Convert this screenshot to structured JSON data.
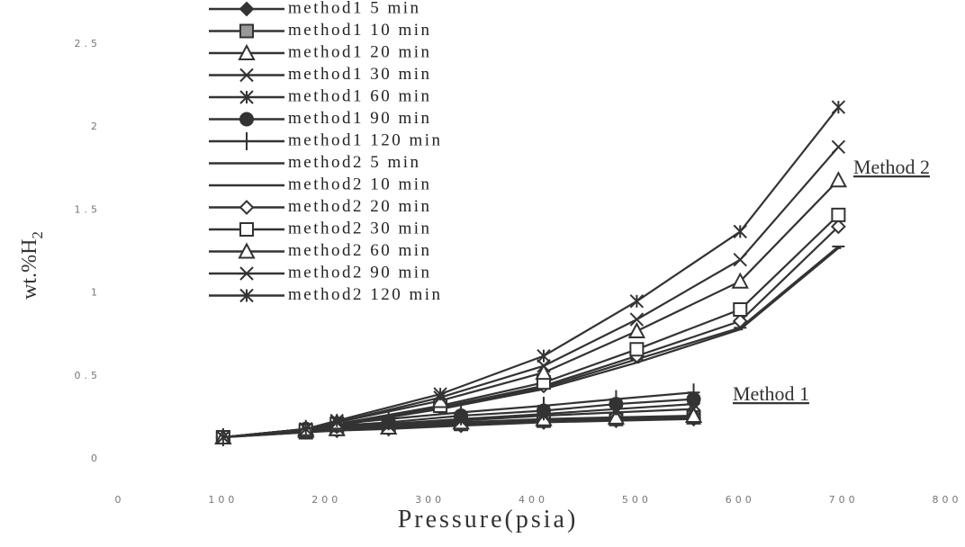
{
  "chart_data": {
    "type": "line",
    "x_label": "Pressure(psia)",
    "y_label": "wt.%H",
    "y_label_sub": "2",
    "xlim": [
      0,
      800
    ],
    "xticks": [
      0,
      100,
      200,
      300,
      400,
      500,
      600,
      700,
      800
    ],
    "ylim": [
      0,
      2.5
    ],
    "yticks": [
      0,
      0.5,
      1,
      1.5,
      2,
      2.5
    ],
    "legend": "top-left",
    "annotations": [
      "Method 2",
      "Method 1"
    ],
    "series": [
      {
        "name": "method1 5 min",
        "marker": "diamond",
        "color": "#333",
        "x": [
          100,
          180,
          210,
          260,
          330,
          410,
          480,
          555
        ],
        "values": [
          0.13,
          0.16,
          0.17,
          0.18,
          0.2,
          0.22,
          0.23,
          0.24
        ]
      },
      {
        "name": "method1 10 min",
        "marker": "square-filled",
        "color": "#333",
        "x": [
          100,
          180,
          210,
          260,
          330,
          410,
          480,
          555
        ],
        "values": [
          0.13,
          0.16,
          0.18,
          0.19,
          0.21,
          0.23,
          0.24,
          0.25
        ]
      },
      {
        "name": "method1 20 min",
        "marker": "triangle",
        "color": "#333",
        "x": [
          100,
          180,
          210,
          260,
          330,
          410,
          480,
          555
        ],
        "values": [
          0.13,
          0.17,
          0.18,
          0.19,
          0.22,
          0.24,
          0.25,
          0.26
        ]
      },
      {
        "name": "method1 30 min",
        "marker": "x",
        "color": "#333",
        "x": [
          100,
          180,
          210,
          260,
          330,
          410,
          480,
          555
        ],
        "values": [
          0.13,
          0.17,
          0.19,
          0.2,
          0.23,
          0.26,
          0.28,
          0.3
        ]
      },
      {
        "name": "method1 60 min",
        "marker": "asterisk",
        "color": "#333",
        "x": [
          100,
          180,
          210,
          260,
          330,
          410,
          480,
          555
        ],
        "values": [
          0.13,
          0.17,
          0.19,
          0.21,
          0.24,
          0.27,
          0.3,
          0.33
        ]
      },
      {
        "name": "method1 90 min",
        "marker": "circle",
        "color": "#333",
        "x": [
          100,
          180,
          210,
          260,
          330,
          410,
          480,
          555
        ],
        "values": [
          0.13,
          0.18,
          0.2,
          0.22,
          0.26,
          0.29,
          0.33,
          0.36
        ]
      },
      {
        "name": "method1 120 min",
        "marker": "plus",
        "color": "#333",
        "x": [
          100,
          180,
          210,
          260,
          330,
          410,
          480,
          555
        ],
        "values": [
          0.13,
          0.18,
          0.21,
          0.24,
          0.28,
          0.32,
          0.36,
          0.4
        ]
      },
      {
        "name": "method2 5 min",
        "marker": "none",
        "color": "#333",
        "x": [
          100,
          180,
          210,
          310,
          410,
          500,
          600,
          695
        ],
        "values": [
          0.13,
          0.17,
          0.2,
          0.3,
          0.42,
          0.58,
          0.78,
          1.27
        ]
      },
      {
        "name": "method2 10 min",
        "marker": "dash",
        "color": "#333",
        "x": [
          100,
          180,
          210,
          310,
          410,
          500,
          600,
          695
        ],
        "values": [
          0.13,
          0.17,
          0.2,
          0.31,
          0.43,
          0.6,
          0.79,
          1.28
        ]
      },
      {
        "name": "method2 20 min",
        "marker": "diamond-open",
        "color": "#333",
        "x": [
          100,
          180,
          210,
          310,
          410,
          500,
          600,
          695
        ],
        "values": [
          0.13,
          0.17,
          0.21,
          0.31,
          0.44,
          0.62,
          0.83,
          1.4
        ]
      },
      {
        "name": "method2 30 min",
        "marker": "square-open",
        "color": "#333",
        "x": [
          100,
          180,
          210,
          310,
          410,
          500,
          600,
          695
        ],
        "values": [
          0.13,
          0.17,
          0.21,
          0.32,
          0.46,
          0.66,
          0.9,
          1.47
        ]
      },
      {
        "name": "method2 60 min",
        "marker": "triangle",
        "color": "#333",
        "x": [
          100,
          180,
          210,
          310,
          410,
          500,
          600,
          695
        ],
        "values": [
          0.13,
          0.18,
          0.22,
          0.35,
          0.52,
          0.77,
          1.07,
          1.68
        ]
      },
      {
        "name": "method2 90 min",
        "marker": "x",
        "color": "#333",
        "x": [
          100,
          180,
          210,
          310,
          410,
          500,
          600,
          695
        ],
        "values": [
          0.13,
          0.18,
          0.22,
          0.37,
          0.56,
          0.84,
          1.2,
          1.88
        ]
      },
      {
        "name": "method2 120 min",
        "marker": "asterisk",
        "color": "#333",
        "x": [
          100,
          180,
          210,
          310,
          410,
          500,
          600,
          695
        ],
        "values": [
          0.13,
          0.18,
          0.23,
          0.39,
          0.62,
          0.95,
          1.37,
          2.12
        ]
      }
    ]
  }
}
